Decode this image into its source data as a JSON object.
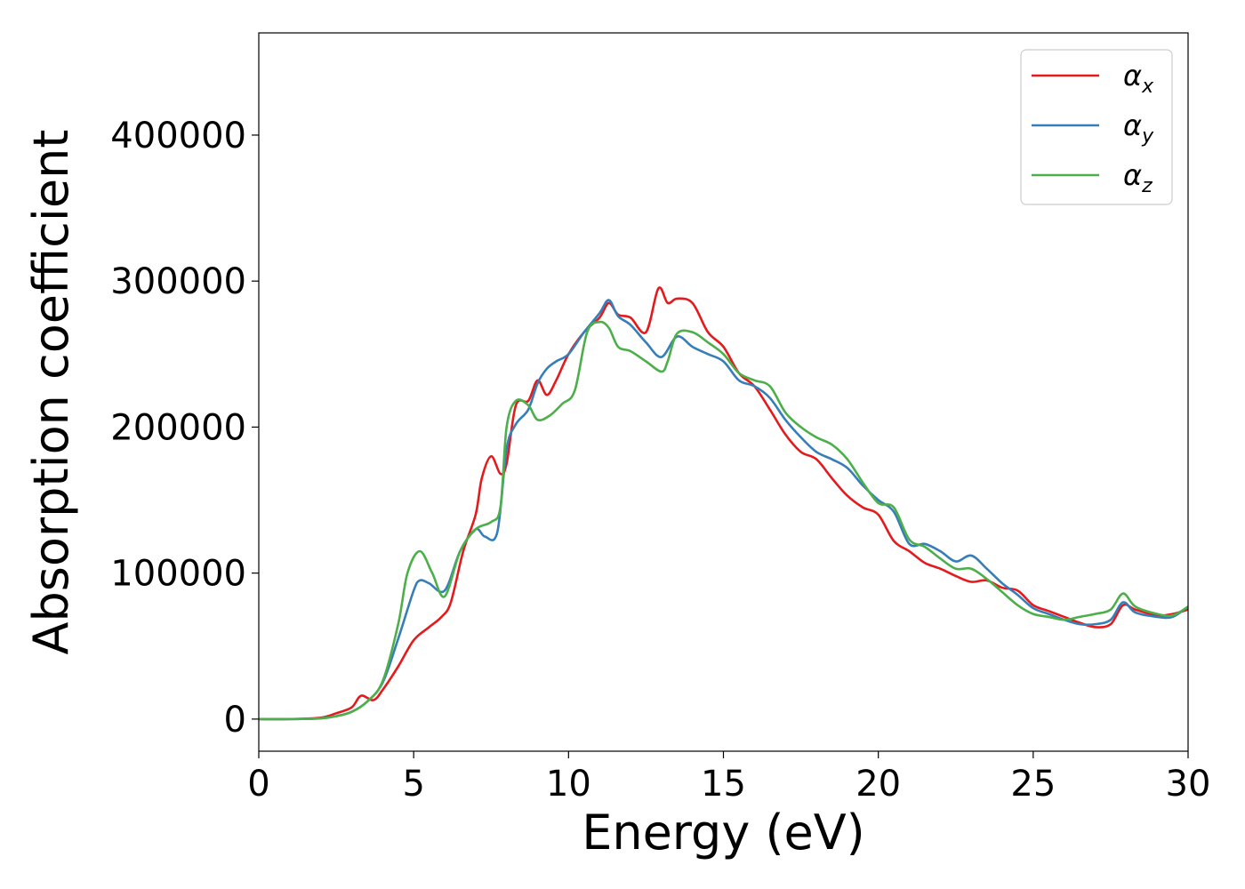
{
  "chart_data": {
    "type": "line",
    "xlabel": "Energy (eV)",
    "ylabel": "Absorption coefficient",
    "xlim": [
      0,
      30
    ],
    "ylim": [
      -22000,
      470000
    ],
    "xticks": [
      0,
      5,
      10,
      15,
      20,
      25,
      30
    ],
    "yticks": [
      0,
      100000,
      200000,
      300000,
      400000
    ],
    "grid": false,
    "legend_position": "top-right",
    "series": [
      {
        "name": "α_x",
        "symbol": "α",
        "subscript": "x",
        "color": "#e41a1c",
        "x": [
          0,
          1,
          2,
          2.5,
          3,
          3.3,
          3.7,
          4,
          4.5,
          5,
          5.5,
          5.9,
          6.2,
          6.6,
          7,
          7.2,
          7.5,
          7.8,
          8,
          8.3,
          8.7,
          9,
          9.3,
          9.6,
          10,
          10.5,
          11,
          11.3,
          11.6,
          12,
          12.5,
          12.9,
          13.2,
          13.5,
          14,
          14.5,
          15,
          15.5,
          16,
          16.5,
          17,
          17.5,
          18,
          18.5,
          19,
          19.5,
          20,
          20.5,
          21,
          21.5,
          22,
          22.5,
          23,
          23.5,
          24,
          24.5,
          25,
          25.5,
          26,
          26.5,
          27,
          27.5,
          27.9,
          28.3,
          29,
          29.5,
          30
        ],
        "y": [
          0,
          0,
          1000,
          4000,
          8000,
          16000,
          13000,
          20000,
          36000,
          54000,
          63000,
          70000,
          80000,
          115000,
          140000,
          165000,
          180000,
          168000,
          175000,
          215000,
          218000,
          232000,
          222000,
          232000,
          250000,
          265000,
          275000,
          285000,
          277000,
          275000,
          265000,
          295000,
          285000,
          288000,
          285000,
          265000,
          255000,
          237000,
          228000,
          212000,
          195000,
          183000,
          178000,
          165000,
          153000,
          145000,
          140000,
          122000,
          115000,
          107000,
          103000,
          98000,
          94000,
          95000,
          90000,
          88000,
          78000,
          74000,
          70000,
          66000,
          63000,
          65000,
          78000,
          75000,
          71000,
          72000,
          75000
        ]
      },
      {
        "name": "α_y",
        "symbol": "α",
        "subscript": "y",
        "color": "#377eb8",
        "x": [
          0,
          1,
          2,
          2.5,
          3,
          3.5,
          4,
          4.5,
          5,
          5.2,
          5.5,
          6,
          6.5,
          7,
          7.3,
          7.7,
          8,
          8.3,
          8.7,
          9,
          9.3,
          9.6,
          10,
          10.5,
          11,
          11.3,
          11.6,
          12,
          12.5,
          13,
          13.5,
          14,
          14.5,
          15,
          15.5,
          16,
          16.5,
          17,
          17.5,
          18,
          18.5,
          19,
          19.5,
          20,
          20.5,
          21,
          21.5,
          22,
          22.5,
          23,
          23.5,
          24,
          24.5,
          25,
          25.5,
          26,
          26.5,
          27,
          27.5,
          27.9,
          28.3,
          29,
          29.5,
          30
        ],
        "y": [
          0,
          0,
          500,
          2000,
          5000,
          12000,
          25000,
          55000,
          88000,
          95000,
          93000,
          88000,
          115000,
          130000,
          125000,
          128000,
          185000,
          202000,
          212000,
          230000,
          240000,
          245000,
          250000,
          265000,
          278000,
          287000,
          276000,
          270000,
          258000,
          248000,
          262000,
          255000,
          250000,
          245000,
          232000,
          228000,
          220000,
          205000,
          193000,
          183000,
          178000,
          172000,
          160000,
          150000,
          142000,
          120000,
          120000,
          115000,
          108000,
          112000,
          103000,
          93000,
          85000,
          76000,
          72000,
          68000,
          65000,
          65000,
          68000,
          80000,
          73000,
          70000,
          70000,
          77000
        ]
      },
      {
        "name": "α_z",
        "symbol": "α",
        "subscript": "z",
        "color": "#4daf4a",
        "x": [
          0,
          1,
          2,
          2.5,
          3,
          3.5,
          4,
          4.5,
          4.8,
          5.2,
          5.6,
          6,
          6.5,
          7,
          7.5,
          7.8,
          8,
          8.3,
          8.7,
          9,
          9.4,
          9.8,
          10.2,
          10.6,
          11,
          11.3,
          11.6,
          12,
          12.5,
          13,
          13.2,
          13.5,
          14,
          14.5,
          15,
          15.5,
          16,
          16.5,
          17,
          17.5,
          18,
          18.5,
          19,
          19.5,
          20,
          20.5,
          21,
          21.5,
          22,
          22.5,
          23,
          23.5,
          24,
          24.5,
          25,
          25.5,
          26,
          26.5,
          27,
          27.5,
          27.9,
          28.3,
          29,
          29.5,
          30
        ],
        "y": [
          0,
          0,
          500,
          2000,
          5000,
          12000,
          26000,
          65000,
          100000,
          115000,
          100000,
          84000,
          115000,
          130000,
          135000,
          145000,
          200000,
          218000,
          215000,
          205000,
          208000,
          216000,
          225000,
          265000,
          272000,
          268000,
          255000,
          252000,
          245000,
          238000,
          245000,
          264000,
          265000,
          258000,
          250000,
          237000,
          232000,
          228000,
          210000,
          200000,
          193000,
          188000,
          178000,
          162000,
          148000,
          145000,
          123000,
          118000,
          110000,
          103000,
          103000,
          96000,
          87000,
          78000,
          72000,
          70000,
          68000,
          70000,
          72000,
          75000,
          86000,
          77000,
          72000,
          71000,
          77000
        ]
      }
    ]
  }
}
